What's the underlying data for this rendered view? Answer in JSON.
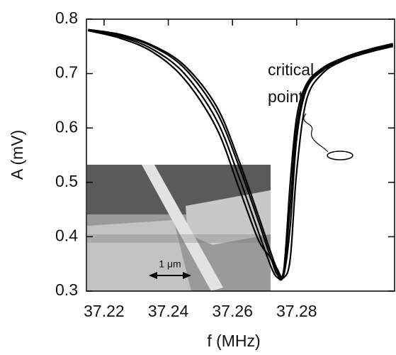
{
  "chart_data": {
    "type": "line",
    "xlabel": "f (MHz)",
    "ylabel": "A (mV)",
    "annotation": [
      "critical",
      "point"
    ],
    "inset_label": "1 μm",
    "x": [
      37.215,
      37.225,
      37.235,
      37.245,
      37.255,
      37.262,
      37.268,
      37.272,
      37.274,
      37.276,
      37.278,
      37.28,
      37.283,
      37.288,
      37.295,
      37.303,
      37.31
    ],
    "series": [
      {
        "color": "#000000",
        "values": [
          0.78,
          0.77,
          0.75,
          0.71,
          0.63,
          0.53,
          0.43,
          0.36,
          0.33,
          0.34,
          0.5,
          0.62,
          0.68,
          0.71,
          0.73,
          0.745,
          0.755
        ]
      },
      {
        "color": "#000000",
        "values": [
          0.78,
          0.768,
          0.745,
          0.7,
          0.615,
          0.51,
          0.41,
          0.345,
          0.325,
          0.33,
          0.42,
          0.58,
          0.67,
          0.705,
          0.728,
          0.743,
          0.752
        ]
      },
      {
        "color": "#000000",
        "values": [
          0.779,
          0.765,
          0.74,
          0.69,
          0.6,
          0.49,
          0.395,
          0.36,
          0.335,
          0.325,
          0.36,
          0.52,
          0.65,
          0.7,
          0.725,
          0.74,
          0.75
        ]
      },
      {
        "color": "#000000",
        "values": [
          0.781,
          0.772,
          0.752,
          0.715,
          0.64,
          0.54,
          0.44,
          0.37,
          0.34,
          0.335,
          0.46,
          0.6,
          0.675,
          0.708,
          0.73,
          0.745,
          0.753
        ]
      }
    ],
    "xlim": [
      37.2145,
      37.3105
    ],
    "ylim": [
      0.3,
      0.8
    ],
    "xticks": [
      37.22,
      37.24,
      37.26,
      37.28
    ],
    "yticks": [
      0.3,
      0.4,
      0.5,
      0.6,
      0.7,
      0.8
    ]
  }
}
